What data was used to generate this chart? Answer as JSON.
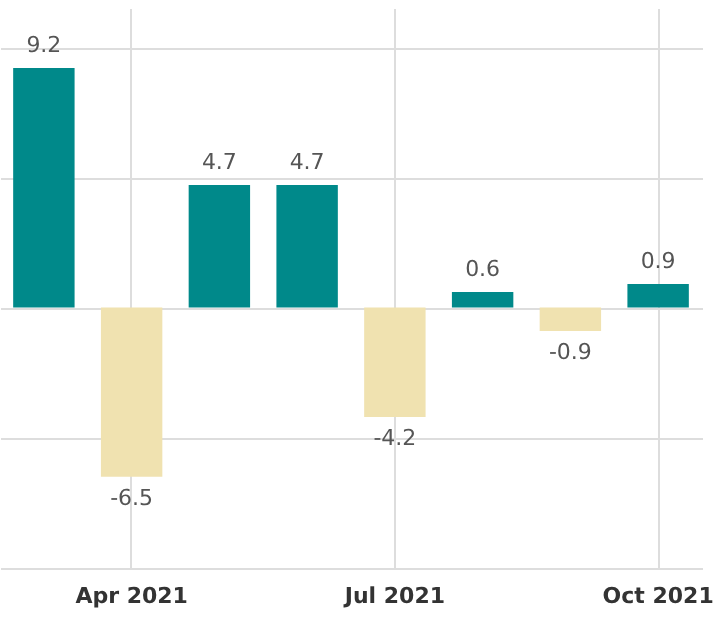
{
  "chart_data": {
    "type": "bar",
    "categories": [
      null,
      "Apr 2021",
      null,
      null,
      "Jul 2021",
      null,
      null,
      "Oct 2021"
    ],
    "values": [
      9.2,
      -6.5,
      4.7,
      4.7,
      -4.2,
      0.6,
      -0.9,
      0.9
    ],
    "colors": [
      "#00898a",
      "#f0e2b0",
      "#00898a",
      "#00898a",
      "#f0e2b0",
      "#00898a",
      "#f0e2b0",
      "#00898a"
    ],
    "ylim": [
      -10,
      11.5
    ],
    "yticks": [
      {
        "value": -10,
        "label": null
      },
      {
        "value": -5,
        "label": null
      },
      {
        "value": 0,
        "label": null
      },
      {
        "value": 5,
        "label": null
      },
      {
        "value": 10,
        "label": null
      }
    ],
    "tick_labels": "x",
    "grid": true,
    "data_labels": true
  }
}
